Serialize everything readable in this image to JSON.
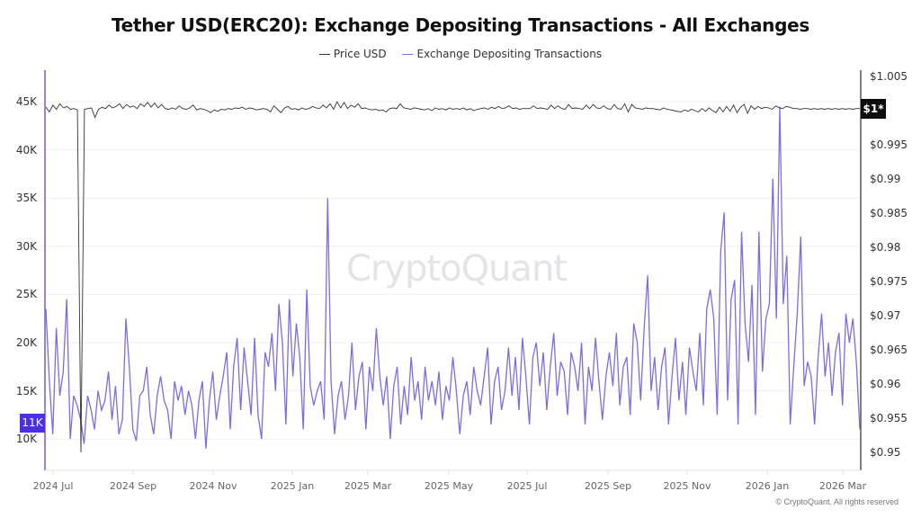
{
  "title": "Tether USD(ERC20): Exchange Depositing Transactions - All Exchanges",
  "legend": [
    {
      "label": "Price USD",
      "color": "#333333"
    },
    {
      "label": "Exchange Depositing Transactions",
      "color": "#7b6ee0"
    }
  ],
  "watermark": "CryptoQuant",
  "copyright": "© CryptoQuant. All rights reserved",
  "badges": {
    "left": "11K",
    "right": "$1*"
  },
  "colors": {
    "price": "#333333",
    "tx": "#7b6ee0",
    "left_axis": "#6c5ce7",
    "right_axis": "#555555",
    "grid": "#f1f1f3",
    "badge_left": "#4a2ee8",
    "badge_right": "#0d0d0d"
  },
  "chart_data": {
    "type": "line",
    "title": "Tether USD(ERC20): Exchange Depositing Transactions - All Exchanges",
    "xlabel": "",
    "ylabel_left": "Exchange Depositing Transactions",
    "ylabel_right": "Price USD",
    "x_tick_labels": [
      "2024 Jul",
      "2024 Sep",
      "2024 Nov",
      "2025 Jan",
      "2025 Mar",
      "2025 May",
      "2025 Jul",
      "2025 Sep",
      "2025 Nov",
      "2026 Jan",
      "2026 Mar"
    ],
    "y_left_ticks": [
      "10K",
      "15K",
      "20K",
      "25K",
      "30K",
      "35K",
      "40K",
      "45K"
    ],
    "y_left_range": [
      7000,
      48000
    ],
    "y_right_ticks": [
      "$0.95",
      "$0.955",
      "$0.96",
      "$0.965",
      "$0.97",
      "$0.975",
      "$0.98",
      "$0.985",
      "$0.99",
      "$0.995",
      "$1.005"
    ],
    "y_right_range": [
      0.9475,
      1.008
    ],
    "legend_position": "top",
    "grid": true,
    "x_range": [
      "2024-06-25",
      "2026-03-20"
    ],
    "sample_interval_days": 4,
    "series": [
      {
        "name": "Exchange Depositing Transactions",
        "axis": "left",
        "color": "#7b6ee0",
        "values": [
          23500,
          16000,
          10500,
          21500,
          14500,
          17000,
          24500,
          10000,
          14500,
          13500,
          12000,
          9500,
          14500,
          13000,
          11000,
          15000,
          13000,
          14000,
          17000,
          12000,
          15500,
          10500,
          12000,
          22500,
          17500,
          11000,
          9800,
          14500,
          15000,
          17500,
          12500,
          10500,
          14500,
          16500,
          14000,
          13000,
          10000,
          16000,
          14000,
          15500,
          12500,
          15000,
          13500,
          10000,
          14000,
          16000,
          9000,
          14000,
          17000,
          12000,
          14500,
          16500,
          19000,
          11000,
          17500,
          20500,
          13000,
          19500,
          16000,
          12500,
          20500,
          12500,
          10000,
          19000,
          17500,
          21000,
          15000,
          24000,
          20000,
          11500,
          24500,
          16500,
          22000,
          18500,
          11000,
          25500,
          15500,
          13500,
          15000,
          16000,
          12000,
          35000,
          16000,
          10500,
          14500,
          16000,
          12000,
          14500,
          20000,
          13000,
          16500,
          18000,
          11000,
          17500,
          15000,
          21500,
          16500,
          13500,
          16500,
          10000,
          15500,
          17500,
          11500,
          15500,
          12500,
          18500,
          14000,
          16000,
          12000,
          17500,
          14000,
          16000,
          13500,
          17000,
          12000,
          15500,
          14000,
          18500,
          15000,
          10500,
          14500,
          16000,
          12500,
          17500,
          15000,
          13500,
          16500,
          19500,
          11500,
          16000,
          17500,
          13000,
          15000,
          19500,
          14500,
          18500,
          13000,
          20500,
          16500,
          11500,
          18500,
          20000,
          15500,
          19000,
          13000,
          17500,
          21000,
          14500,
          18000,
          17000,
          12500,
          19000,
          17500,
          15000,
          20000,
          11500,
          17500,
          15000,
          20500,
          16000,
          12000,
          16500,
          19000,
          15500,
          21000,
          13500,
          17500,
          18500,
          12500,
          22000,
          20000,
          14000,
          21500,
          27000,
          15000,
          18500,
          13000,
          17500,
          19500,
          11500,
          16500,
          20500,
          14000,
          18000,
          12500,
          19500,
          17000,
          15000,
          21000,
          13500,
          23500,
          25500,
          22500,
          12500,
          29500,
          33500,
          14000,
          24500,
          26500,
          11500,
          31500,
          22000,
          18000,
          26000,
          12500,
          31500,
          17000,
          22500,
          24000,
          37000,
          22500,
          44500,
          24000,
          29000,
          11500,
          17500,
          23000,
          31000,
          15500,
          18000,
          16500,
          11500,
          18500,
          23000,
          16500,
          20000,
          14500,
          19000,
          21000,
          13500,
          23000,
          20000,
          22500,
          18000,
          11000
        ]
      },
      {
        "name": "Price USD",
        "axis": "right",
        "color": "#333333",
        "values": [
          1.0005,
          0.9998,
          1.0008,
          1.0002,
          1.001,
          1.0004,
          1.0006,
          1.0002,
          1.0003,
          1.0001,
          0.95,
          1.0002,
          1.0003,
          1.0004,
          0.999,
          1.0002,
          1.0005,
          1.0003,
          1.0008,
          1.0004,
          1.0006,
          1.001,
          1.0003,
          1.0009,
          1.0005,
          1.0007,
          1.0003,
          1.001,
          1.0006,
          1.0012,
          1.0005,
          1.0011,
          1.0004,
          1.0009,
          1.0003,
          1.0002,
          1.0004,
          1.0002,
          1.0007,
          1.0003,
          1.0002,
          1.0004,
          1.0008,
          1.0001,
          1.0003,
          1.0002,
          1.0,
          0.9997,
          1.0001,
          0.9999,
          1.0002,
          1.0001,
          1.0003,
          1.0002,
          1.0004,
          1.0003,
          1.0005,
          1.0002,
          1.0004,
          1.0003,
          1.0001,
          1.0002,
          1.0003,
          1.0002,
          0.9998,
          1.0007,
          1.0002,
          0.9997,
          1.0004,
          1.0006,
          1.0002,
          1.0003,
          1.0001,
          1.0004,
          1.0002,
          1.0003,
          1.0006,
          1.0004,
          1.0003,
          1.0008,
          1.0004,
          1.001,
          1.0002,
          1.0013,
          1.0004,
          1.0012,
          1.0003,
          1.0008,
          1.0005,
          1.001,
          1.0003,
          1.0004,
          1.0002,
          1.0001,
          1.0002,
          1.0,
          1.0001,
          0.9998,
          1.0003,
          1.0004,
          1.0003,
          1.001,
          1.0004,
          1.0003,
          1.0002,
          1.0004,
          1.0003,
          1.0002,
          1.0001,
          1.0003,
          1.0,
          1.0004,
          1.0002,
          1.0003,
          1.0001,
          1.0004,
          1.0002,
          1.0003,
          1.0002,
          1.0004,
          1.0001,
          1.0003,
          1.0,
          1.0002,
          1.0003,
          1.0004,
          1.0002,
          1.0005,
          1.0003,
          1.0006,
          1.0003,
          1.0004,
          1.0007,
          1.0003,
          1.0004,
          1.0002,
          1.0003,
          1.0003,
          1.0003,
          1.0007,
          1.0003,
          1.0004,
          1.0003,
          1.0002,
          1.0008,
          1.0003,
          1.0007,
          1.0003,
          1.0002,
          1.0009,
          1.0003,
          1.0004,
          1.0003,
          1.0002,
          1.0008,
          1.0003,
          1.0009,
          1.0004,
          1.0003,
          1.0007,
          1.0003,
          1.0002,
          1.0009,
          1.0003,
          1.0002,
          1.001,
          0.9998,
          1.0009,
          1.0004,
          1.0003,
          1.0002,
          1.0004,
          1.0003,
          1.0003,
          1.0002,
          1.0001,
          1.0004,
          1.0002,
          1.0001,
          1.0,
          0.9999,
          0.9998,
          1.0001,
          0.9999,
          1.0002,
          1.0,
          0.9998,
          1.0003,
          0.9999,
          1.0004,
          1.0,
          0.9997,
          1.0005,
          0.9998,
          1.0006,
          0.9999,
          1.0008,
          0.9997,
          1.0005,
          1.0009,
          0.9996,
          1.0007,
          1.0002,
          1.0006,
          1.0003,
          1.0005,
          1.0004,
          1.0002,
          1.0007,
          1.0004,
          1.0003,
          1.0006,
          1.0005,
          1.0003,
          1.0003,
          1.0002,
          1.0003,
          1.0003,
          1.0002,
          1.0003,
          1.0002,
          1.0003,
          1.0002,
          1.0003,
          1.0002,
          1.0003,
          1.0002,
          1.0003,
          1.0002,
          1.0003,
          1.0002,
          1.0003,
          1.0003
        ]
      }
    ]
  }
}
